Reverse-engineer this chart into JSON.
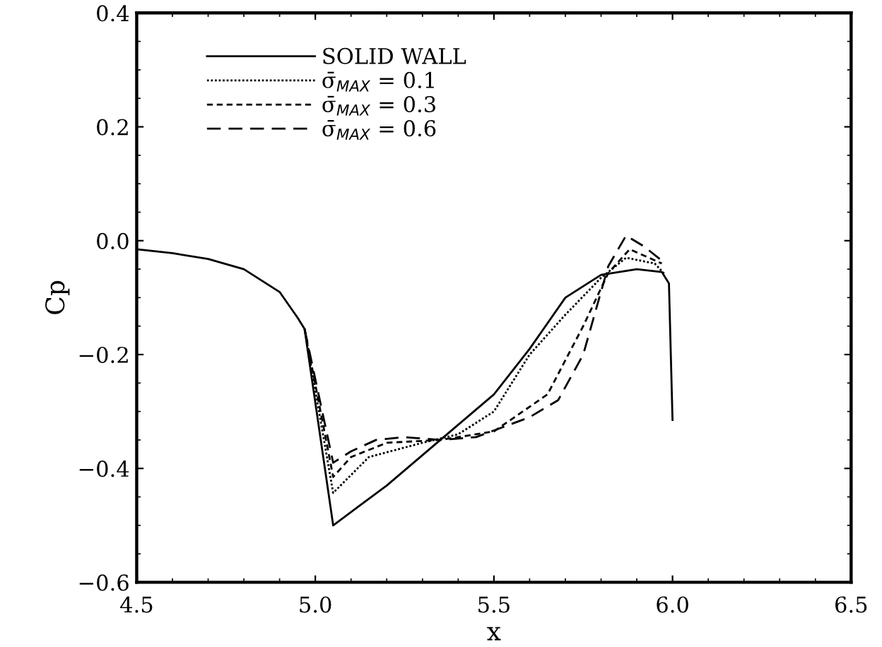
{
  "chart_data": {
    "type": "line",
    "xlabel": "x",
    "ylabel": "Cp",
    "xlim": [
      4.5,
      6.5
    ],
    "xticks": [
      4.5,
      {
        "value": 5,
        "label": "5.0"
      },
      5.5,
      {
        "value": 6,
        "label": "6.0"
      },
      6.5
    ],
    "ylim": [
      -0.6,
      0.4
    ],
    "yticks": [
      -0.6,
      -0.4,
      -0.2,
      {
        "value": 0,
        "label": "0.0"
      },
      0.2,
      0.4
    ],
    "grid": false,
    "legend": "top left",
    "marker": "none",
    "series": [
      {
        "name": "SOLID WALL",
        "color": "#000000",
        "line_style": "solid",
        "x": [
          4.5,
          4.6,
          4.7,
          4.8,
          4.9,
          4.95,
          4.97,
          5.05,
          5.2,
          5.35,
          5.5,
          5.6,
          5.7,
          5.8,
          5.9,
          5.97,
          5.99,
          6.0
        ],
        "values": [
          -0.015,
          -0.022,
          -0.032,
          -0.05,
          -0.09,
          -0.135,
          -0.155,
          -0.5,
          -0.43,
          -0.35,
          -0.27,
          -0.19,
          -0.1,
          -0.06,
          -0.05,
          -0.055,
          -0.075,
          -0.315
        ]
      },
      {
        "name": "σ̄$_{MAX}$ = 0.1",
        "color": "#000000",
        "line_style": "dotted",
        "x": [
          4.97,
          5.05,
          5.15,
          5.3,
          5.4,
          5.5,
          5.6,
          5.7,
          5.8,
          5.87,
          5.95,
          5.98
        ],
        "values": [
          -0.155,
          -0.443,
          -0.38,
          -0.355,
          -0.34,
          -0.3,
          -0.2,
          -0.13,
          -0.065,
          -0.03,
          -0.04,
          -0.06
        ]
      },
      {
        "name": "σ̄$_{MAX}$ = 0.3",
        "color": "#000000",
        "line_style": "dashed",
        "x": [
          4.97,
          5.05,
          5.1,
          5.2,
          5.35,
          5.5,
          5.65,
          5.75,
          5.82,
          5.88,
          5.97
        ],
        "values": [
          -0.155,
          -0.415,
          -0.38,
          -0.355,
          -0.35,
          -0.335,
          -0.27,
          -0.15,
          -0.057,
          -0.015,
          -0.04
        ]
      },
      {
        "name": "σ̄$_{MAX}$ = 0.6",
        "color": "#000000",
        "line_style": "longdash",
        "x": [
          4.97,
          5.05,
          5.1,
          5.17,
          5.25,
          5.35,
          5.45,
          5.6,
          5.68,
          5.75,
          5.82,
          5.87,
          5.92,
          5.97
        ],
        "values": [
          -0.155,
          -0.39,
          -0.37,
          -0.35,
          -0.345,
          -0.35,
          -0.345,
          -0.31,
          -0.28,
          -0.2,
          -0.045,
          0.009,
          -0.01,
          -0.035
        ]
      }
    ]
  }
}
